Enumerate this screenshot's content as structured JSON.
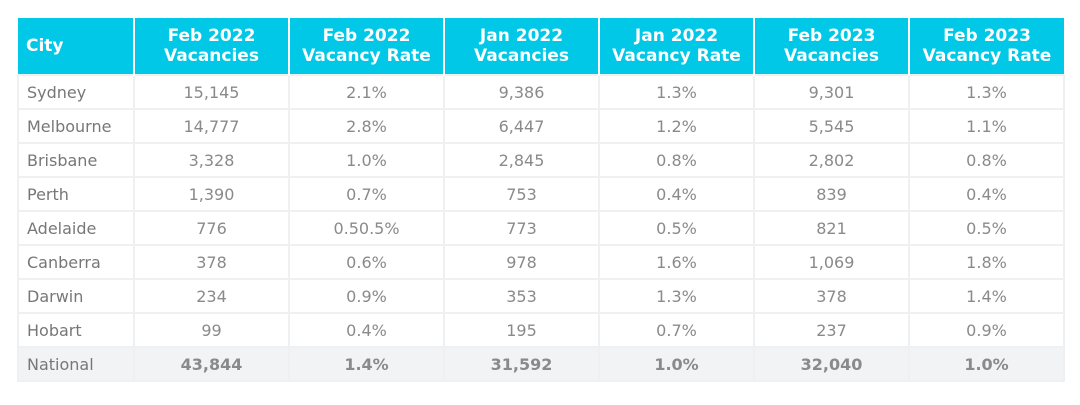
{
  "table": {
    "headers": [
      {
        "line1": "City",
        "line2": ""
      },
      {
        "line1": "Feb 2022",
        "line2": "Vacancies"
      },
      {
        "line1": "Feb 2022",
        "line2": "Vacancy Rate"
      },
      {
        "line1": "Jan 2022",
        "line2": "Vacancies"
      },
      {
        "line1": "Jan 2022",
        "line2": "Vacancy Rate"
      },
      {
        "line1": "Feb 2023",
        "line2": "Vacancies"
      },
      {
        "line1": "Feb 2023",
        "line2": "Vacancy Rate"
      }
    ],
    "rows": [
      [
        "Sydney",
        "15,145",
        "2.1%",
        "9,386",
        "1.3%",
        "9,301",
        "1.3%"
      ],
      [
        "Melbourne",
        "14,777",
        "2.8%",
        "6,447",
        "1.2%",
        "5,545",
        "1.1%"
      ],
      [
        "Brisbane",
        "3,328",
        "1.0%",
        "2,845",
        "0.8%",
        "2,802",
        "0.8%"
      ],
      [
        "Perth",
        "1,390",
        "0.7%",
        "753",
        "0.4%",
        "839",
        "0.4%"
      ],
      [
        "Adelaide",
        "776",
        "0.50.5%",
        "773",
        "0.5%",
        "821",
        "0.5%"
      ],
      [
        "Canberra",
        "378",
        "0.6%",
        "978",
        "1.6%",
        "1,069",
        "1.8%"
      ],
      [
        "Darwin",
        "234",
        "0.9%",
        "353",
        "1.3%",
        "378",
        "1.4%"
      ],
      [
        "Hobart",
        "99",
        "0.4%",
        "195",
        "0.7%",
        "237",
        "0.9%"
      ],
      [
        "National",
        "43,844",
        "1.4%",
        "31,592",
        "1.0%",
        "32,040",
        "1.0%"
      ]
    ]
  },
  "colors": {
    "header_bg": "#00c8e6",
    "header_text": "#ffffff",
    "body_text": "#8a8a8a",
    "grid": "#eef0f2",
    "total_row_bg": "#f1f3f5"
  }
}
